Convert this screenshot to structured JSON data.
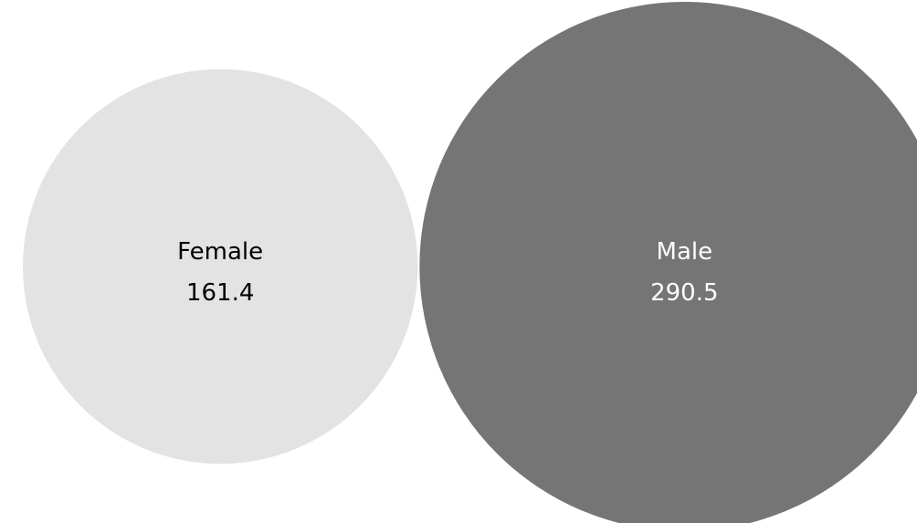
{
  "chart_data": {
    "type": "bubble",
    "series": [
      {
        "label": "Female",
        "value": 161.4,
        "value_text": "161.4",
        "color": "#e3e3e3",
        "text_color": "#000000"
      },
      {
        "label": "Male",
        "value": 290.5,
        "value_text": "290.5",
        "color": "#757575",
        "text_color": "#ffffff"
      }
    ],
    "title": "",
    "legend": "none",
    "grid": false
  }
}
